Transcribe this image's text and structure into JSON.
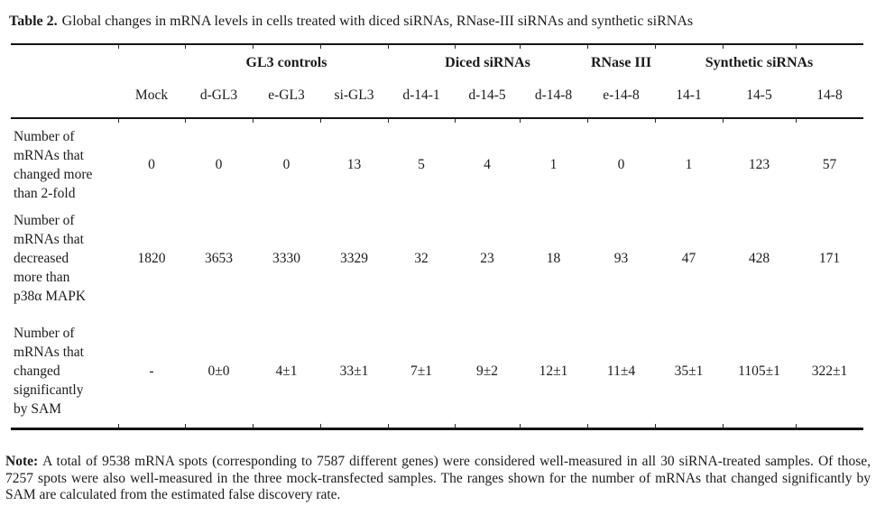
{
  "title": {
    "prefix": "Table 2.",
    "text": "Global changes in mRNA levels in cells treated with diced siRNAs, RNase-III siRNAs and synthetic siRNAs"
  },
  "table": {
    "group_headers": [
      {
        "label": "GL3 controls",
        "span": 3
      },
      {
        "label": "Diced siRNAs",
        "span": 3
      },
      {
        "label": "RNase III",
        "span": 1
      },
      {
        "label": "Synthetic siRNAs",
        "span": 3
      }
    ],
    "column_headers": [
      "Mock",
      "d-GL3",
      "e-GL3",
      "si-GL3",
      "d-14-1",
      "d-14-5",
      "d-14-8",
      "e-14-8",
      "14-1",
      "14-5",
      "14-8"
    ],
    "rows": [
      {
        "label": "Number of\nmRNAs that\nchanged more\nthan 2-fold",
        "values": [
          "0",
          "0",
          "0",
          "13",
          "5",
          "4",
          "1",
          "0",
          "1",
          "123",
          "57"
        ]
      },
      {
        "label": "Number of\nmRNAs that\ndecreased\nmore than\np38α MAPK",
        "values": [
          "1820",
          "3653",
          "3330",
          "3329",
          "32",
          "23",
          "18",
          "93",
          "47",
          "428",
          "171"
        ]
      },
      {
        "label": "Number of\nmRNAs that\nchanged\nsignificantly\nby SAM",
        "values": [
          "-",
          "0±0",
          "4±1",
          "33±1",
          "7±1",
          "9±2",
          "12±1",
          "11±4",
          "35±1",
          "1105±1",
          "322±1"
        ]
      }
    ]
  },
  "note": {
    "prefix": "Note:",
    "text": "A total of 9538 mRNA spots (corresponding to 7587 different genes) were considered well-measured in all 30 siRNA-treated samples. Of those, 7257 spots were also well-measured in the three mock-transfected samples. The ranges shown for the number of mRNAs that changed significantly by SAM are calculated from the estimated false discovery rate."
  }
}
